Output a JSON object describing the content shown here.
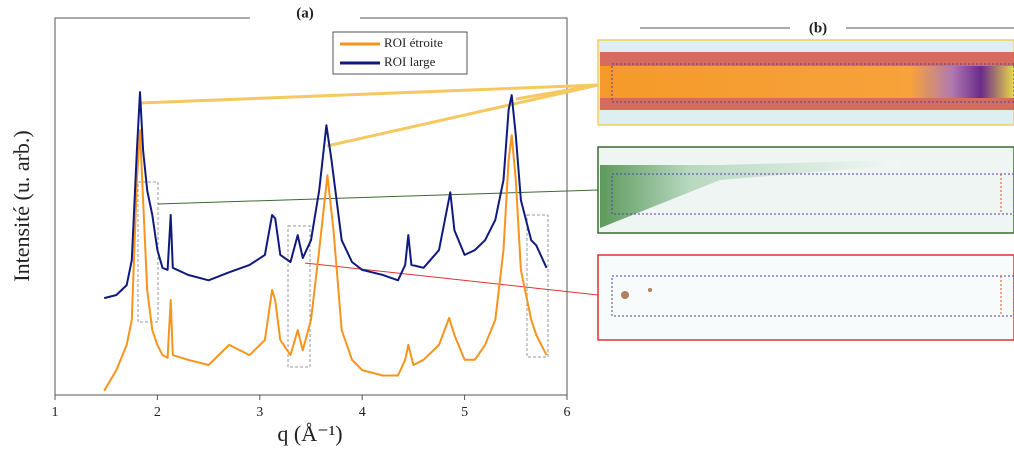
{
  "chart_data": {
    "type": "line",
    "title": "(a)",
    "panel_b_title": "(b)",
    "xlabel": "q (Å⁻¹)",
    "ylabel": "Intensité (u. arb.)",
    "xlim": [
      1,
      6
    ],
    "xticks": [
      1,
      2,
      3,
      4,
      5,
      6
    ],
    "ylim": [
      1,
      10000000
    ],
    "log_y": true,
    "legend": "top-center",
    "series": [
      {
        "name": "ROI étroite",
        "color": "#f7941d",
        "x": [
          1.48,
          1.6,
          1.7,
          1.75,
          1.8,
          1.83,
          1.86,
          1.9,
          1.95,
          2.0,
          2.05,
          2.1,
          2.13,
          2.15,
          2.3,
          2.5,
          2.7,
          2.9,
          3.05,
          3.12,
          3.15,
          3.2,
          3.3,
          3.37,
          3.42,
          3.5,
          3.58,
          3.66,
          3.72,
          3.8,
          3.9,
          4.0,
          4.2,
          4.35,
          4.42,
          4.45,
          4.5,
          4.6,
          4.75,
          4.85,
          4.9,
          5.0,
          5.1,
          5.2,
          5.3,
          5.38,
          5.43,
          5.46,
          5.5,
          5.55,
          5.65,
          5.7,
          5.8
        ],
        "values": [
          1.2,
          2.9,
          8.5,
          25,
          9800,
          83000,
          4150,
          89,
          16,
          8.5,
          5.5,
          4.9,
          58,
          5.5,
          4.5,
          3.6,
          8.5,
          5.5,
          10.5,
          89,
          58,
          10.5,
          5.5,
          16,
          6.8,
          25,
          490,
          12000,
          1150,
          16,
          4.5,
          2.9,
          2.3,
          2.3,
          4.5,
          8.5,
          3.6,
          4.5,
          8.5,
          27,
          13,
          4.5,
          4.5,
          8.5,
          25,
          490,
          23000,
          66000,
          9800,
          210,
          25,
          13,
          5.5
        ]
      },
      {
        "name": "ROI large",
        "color": "#101a7e",
        "x": [
          1.48,
          1.6,
          1.7,
          1.75,
          1.8,
          1.83,
          1.86,
          1.9,
          1.95,
          2.0,
          2.05,
          2.1,
          2.13,
          2.15,
          2.3,
          2.5,
          2.7,
          2.9,
          3.05,
          3.12,
          3.15,
          3.2,
          3.3,
          3.37,
          3.42,
          3.5,
          3.58,
          3.65,
          3.7,
          3.8,
          3.9,
          4.0,
          4.2,
          4.35,
          4.42,
          4.45,
          4.48,
          4.6,
          4.75,
          4.83,
          4.86,
          4.9,
          5.0,
          5.1,
          5.2,
          5.3,
          5.38,
          5.43,
          5.46,
          5.5,
          5.55,
          5.65,
          5.7,
          5.8
        ],
        "values": [
          63,
          72,
          110,
          320,
          35000,
          420000,
          35000,
          6300,
          2200,
          490,
          230,
          210,
          2200,
          230,
          170,
          135,
          190,
          260,
          400,
          2200,
          1900,
          400,
          295,
          930,
          350,
          750,
          6300,
          102000,
          23000,
          750,
          295,
          210,
          170,
          135,
          260,
          930,
          260,
          230,
          490,
          2950,
          5800,
          1150,
          400,
          490,
          750,
          1780,
          9800,
          195000,
          370000,
          66000,
          4150,
          750,
          600,
          230
        ]
      }
    ]
  }
}
